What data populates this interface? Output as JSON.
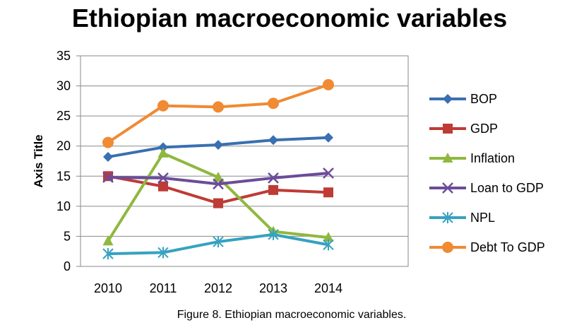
{
  "caption": "Figure 8. Ethiopian macroeconomic variables.",
  "chart_data": {
    "type": "line",
    "title": "Ethiopian macroeconomic variables",
    "xlabel": "",
    "ylabel": "Axis Title",
    "x": [
      "2010",
      "2011",
      "2012",
      "2013",
      "2014"
    ],
    "ylim": [
      0,
      35
    ],
    "yticks": [
      0,
      5,
      10,
      15,
      20,
      25,
      30,
      35
    ],
    "grid": true,
    "legend_position": "right",
    "series": [
      {
        "name": "BOP",
        "color": "#3a6fb2",
        "marker": "diamond",
        "values": [
          18.2,
          19.8,
          20.2,
          21.0,
          21.4
        ]
      },
      {
        "name": "GDP",
        "color": "#be3b36",
        "marker": "square",
        "values": [
          15.0,
          13.3,
          10.5,
          12.7,
          12.3
        ]
      },
      {
        "name": "Inflation",
        "color": "#8fb83e",
        "marker": "triangle",
        "values": [
          4.2,
          18.8,
          14.8,
          5.8,
          4.8
        ]
      },
      {
        "name": "Loan to GDP",
        "color": "#6b4c9a",
        "marker": "x",
        "values": [
          14.8,
          14.7,
          13.7,
          14.7,
          15.5
        ]
      },
      {
        "name": "NPL",
        "color": "#36a2c0",
        "marker": "star",
        "values": [
          2.1,
          2.3,
          4.1,
          5.3,
          3.6
        ]
      },
      {
        "name": "Debt To GDP",
        "color": "#f08a33",
        "marker": "circle",
        "values": [
          20.6,
          26.7,
          26.5,
          27.1,
          30.2
        ]
      }
    ]
  }
}
